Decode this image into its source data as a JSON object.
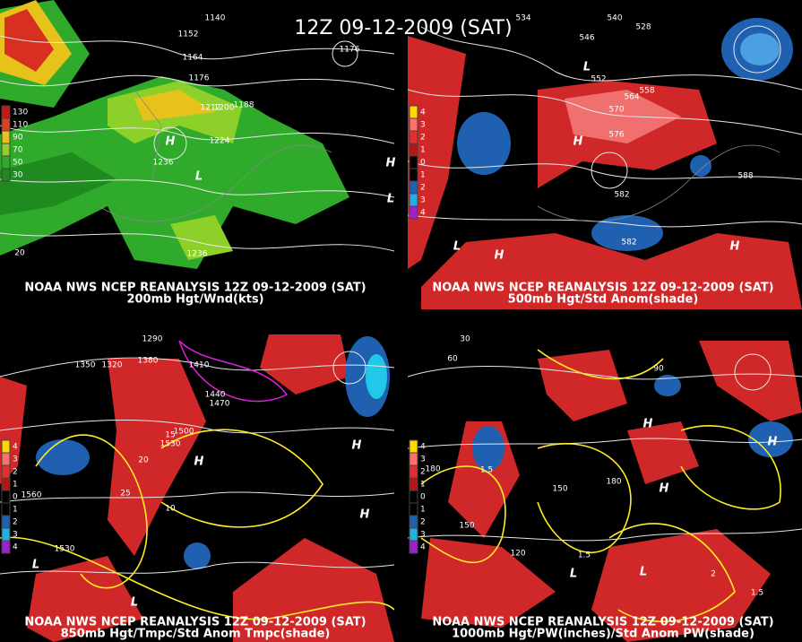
{
  "title": "12Z 09-12-2009 (SAT)",
  "panels": [
    {
      "caption": "NOAA NWS NCEP REANALYSIS 12Z 09-12-2009 (SAT)",
      "subcaption": "200mb Hgt/Wnd(kts)",
      "legend": [
        "130",
        "110",
        "90",
        "70",
        "50",
        "30"
      ],
      "contour_labels": [
        "1140",
        "1152",
        "1164",
        "1176",
        "1188",
        "1200",
        "1212",
        "1224",
        "1236",
        "1176",
        "1236",
        "20"
      ],
      "centers": [
        "H",
        "L",
        "H",
        "L"
      ]
    },
    {
      "caption": "NOAA NWS NCEP REANALYSIS 12Z 09-12-2009 (SAT)",
      "subcaption": "500mb Hgt/Std Anom(shade)",
      "legend": [
        "4",
        "3",
        "2",
        "1",
        "0",
        "1",
        "2",
        "3",
        "4"
      ],
      "contour_labels": [
        "534",
        "540",
        "546",
        "552",
        "558",
        "564",
        "570",
        "576",
        "582",
        "588",
        "582",
        "528"
      ],
      "centers": [
        "H",
        "L",
        "H",
        "L",
        "H"
      ]
    },
    {
      "caption": "NOAA NWS NCEP REANALYSIS 12Z 09-12-2009 (SAT)",
      "subcaption": "850mb Hgt/Tmpc/Std Anom Tmpc(shade)",
      "legend": [
        "4",
        "3",
        "2",
        "1",
        "0",
        "1",
        "2",
        "3",
        "4"
      ],
      "contour_labels": [
        "1290",
        "1320",
        "1350",
        "1380",
        "1410",
        "1440",
        "1470",
        "1500",
        "1530",
        "1560",
        "15",
        "20",
        "25",
        "10",
        "1530"
      ],
      "centers": [
        "H",
        "L",
        "H",
        "L",
        "H"
      ]
    },
    {
      "caption": "NOAA NWS NCEP REANALYSIS 12Z 09-12-2009 (SAT)",
      "subcaption": "1000mb Hgt/PW(inches)/Std Anom PW(shade)",
      "legend": [
        "4",
        "3",
        "2",
        "1",
        "0",
        "1",
        "2",
        "3",
        "4"
      ],
      "contour_labels": [
        "30",
        "60",
        "90",
        "120",
        "150",
        "180",
        "150",
        "180",
        "1.5",
        "2",
        "1.5",
        "1.5"
      ],
      "centers": [
        "H",
        "L",
        "H",
        "L",
        "H"
      ]
    }
  ]
}
